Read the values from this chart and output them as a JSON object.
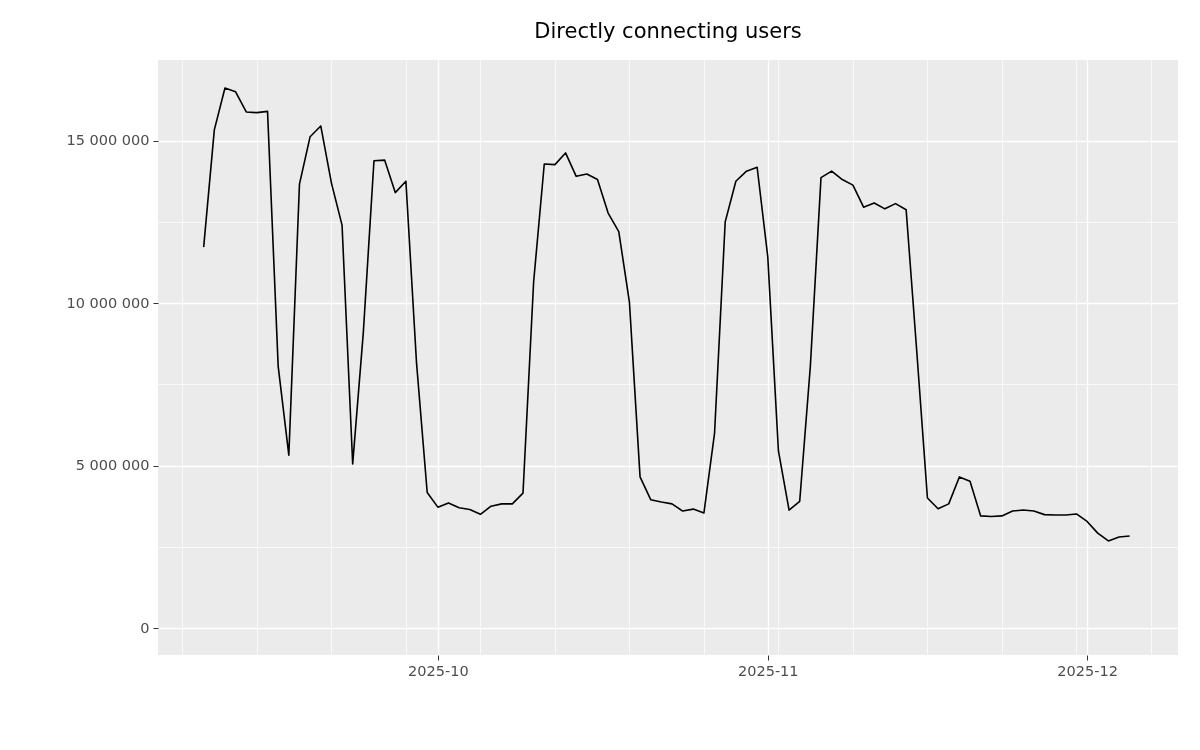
{
  "chart_data": {
    "type": "line",
    "title": "Directly connecting users",
    "x": [
      "2025-09-09",
      "2025-09-10",
      "2025-09-11",
      "2025-09-12",
      "2025-09-13",
      "2025-09-14",
      "2025-09-15",
      "2025-09-16",
      "2025-09-17",
      "2025-09-18",
      "2025-09-19",
      "2025-09-20",
      "2025-09-21",
      "2025-09-22",
      "2025-09-23",
      "2025-09-24",
      "2025-09-25",
      "2025-09-26",
      "2025-09-27",
      "2025-09-28",
      "2025-09-29",
      "2025-09-30",
      "2025-10-01",
      "2025-10-02",
      "2025-10-03",
      "2025-10-04",
      "2025-10-05",
      "2025-10-06",
      "2025-10-07",
      "2025-10-08",
      "2025-10-09",
      "2025-10-10",
      "2025-10-11",
      "2025-10-12",
      "2025-10-13",
      "2025-10-14",
      "2025-10-15",
      "2025-10-16",
      "2025-10-17",
      "2025-10-18",
      "2025-10-19",
      "2025-10-20",
      "2025-10-21",
      "2025-10-22",
      "2025-10-23",
      "2025-10-24",
      "2025-10-25",
      "2025-10-26",
      "2025-10-27",
      "2025-10-28",
      "2025-10-29",
      "2025-10-30",
      "2025-10-31",
      "2025-11-01",
      "2025-11-02",
      "2025-11-03",
      "2025-11-04",
      "2025-11-05",
      "2025-11-06",
      "2025-11-07",
      "2025-11-08",
      "2025-11-09",
      "2025-11-10",
      "2025-11-11",
      "2025-11-12",
      "2025-11-13",
      "2025-11-14",
      "2025-11-15",
      "2025-11-16",
      "2025-11-17",
      "2025-11-18",
      "2025-11-19",
      "2025-11-20",
      "2025-11-21",
      "2025-11-22",
      "2025-11-23",
      "2025-11-24",
      "2025-11-25",
      "2025-11-26",
      "2025-11-27",
      "2025-11-28",
      "2025-11-29",
      "2025-11-30",
      "2025-12-01",
      "2025-12-02",
      "2025-12-03",
      "2025-12-04",
      "2025-12-05"
    ],
    "series": [
      {
        "color": "#000000",
        "values": [
          11720000,
          15330000,
          16620000,
          16500000,
          15880000,
          15860000,
          15900000,
          8050000,
          5320000,
          13660000,
          15120000,
          15450000,
          13700000,
          12400000,
          5050000,
          9100000,
          14380000,
          14400000,
          13400000,
          13750000,
          8150000,
          4170000,
          3720000,
          3850000,
          3700000,
          3650000,
          3500000,
          3750000,
          3820000,
          3820000,
          4150000,
          10650000,
          14280000,
          14260000,
          14620000,
          13900000,
          13970000,
          13800000,
          12770000,
          12200000,
          10030000,
          4650000,
          3950000,
          3880000,
          3820000,
          3600000,
          3660000,
          3540000,
          6000000,
          12500000,
          13750000,
          14060000,
          14180000,
          11420000,
          5450000,
          3630000,
          3900000,
          8060000,
          13860000,
          14060000,
          13800000,
          13630000,
          12950000,
          13080000,
          12900000,
          13060000,
          12870000,
          8500000,
          4000000,
          3670000,
          3820000,
          4650000,
          4520000,
          3450000,
          3430000,
          3450000,
          3600000,
          3630000,
          3600000,
          3490000,
          3480000,
          3480000,
          3510000,
          3280000,
          2920000,
          2680000,
          2800000,
          2830000
        ]
      }
    ],
    "xlim": [
      "2025-09-04T17:00",
      "2025-12-09T13:00"
    ],
    "xticks": [
      {
        "value": "2025-09-07",
        "label": null
      },
      {
        "value": "2025-09-14",
        "label": null
      },
      {
        "value": "2025-09-21",
        "label": null
      },
      {
        "value": "2025-09-28",
        "label": null
      },
      {
        "value": "2025-10-01",
        "label": "2025-10"
      },
      {
        "value": "2025-10-05",
        "label": null
      },
      {
        "value": "2025-10-12",
        "label": null
      },
      {
        "value": "2025-10-19",
        "label": null
      },
      {
        "value": "2025-10-26",
        "label": null
      },
      {
        "value": "2025-11-01",
        "label": "2025-11"
      },
      {
        "value": "2025-11-02",
        "label": null
      },
      {
        "value": "2025-11-09",
        "label": null
      },
      {
        "value": "2025-11-16",
        "label": null
      },
      {
        "value": "2025-11-23",
        "label": null
      },
      {
        "value": "2025-11-30",
        "label": null
      },
      {
        "value": "2025-12-01",
        "label": "2025-12"
      },
      {
        "value": "2025-12-07",
        "label": null
      }
    ],
    "ylim": [
      -830000,
      17480000
    ],
    "yticks": [
      {
        "value": 0,
        "label": "0"
      },
      {
        "value": 2500000,
        "label": null
      },
      {
        "value": 5000000,
        "label": "5 000 000"
      },
      {
        "value": 7500000,
        "label": null
      },
      {
        "value": 10000000,
        "label": "10 000 000"
      },
      {
        "value": 12500000,
        "label": null
      },
      {
        "value": 15000000,
        "label": "15 000 000"
      }
    ],
    "grid": true
  }
}
